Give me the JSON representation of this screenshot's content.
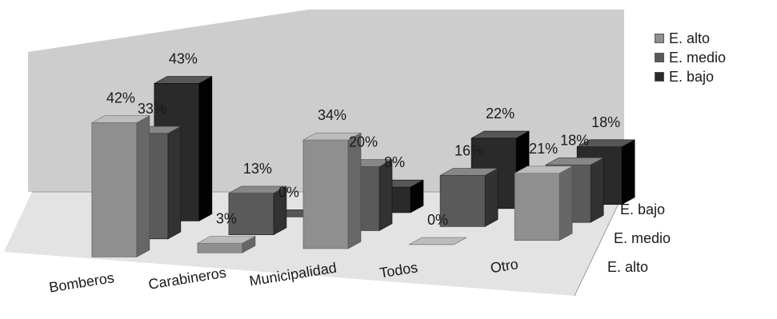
{
  "chart_data": {
    "type": "bar",
    "subtype": "3d-clustered-bar",
    "categories": [
      "Bomberos",
      "Carabineros",
      "Municipalidad",
      "Todos",
      "Otro"
    ],
    "series": [
      {
        "name": "E. alto",
        "values": [
          42,
          3,
          34,
          0,
          21
        ],
        "value_labels": [
          "42%",
          "3%",
          "34%",
          "0%",
          "21%"
        ]
      },
      {
        "name": "E. medio",
        "values": [
          33,
          13,
          20,
          16,
          18
        ],
        "value_labels": [
          "33%",
          "13%",
          "20%",
          "16%",
          "18%"
        ]
      },
      {
        "name": "E. bajo",
        "values": [
          43,
          0,
          8,
          22,
          18
        ],
        "value_labels": [
          "43%",
          "0%",
          "8%",
          "22%",
          "18%"
        ]
      }
    ],
    "depth_axis_labels": [
      "E. bajo",
      "E. medio",
      "E. alto"
    ],
    "unit": "%",
    "legend_position": "top-right",
    "colors": {
      "E. alto": "#8f8f8f",
      "E. medio": "#5a5a5a",
      "E. bajo": "#2a2a2a"
    },
    "ylim": [
      0,
      45
    ],
    "grid": false
  }
}
